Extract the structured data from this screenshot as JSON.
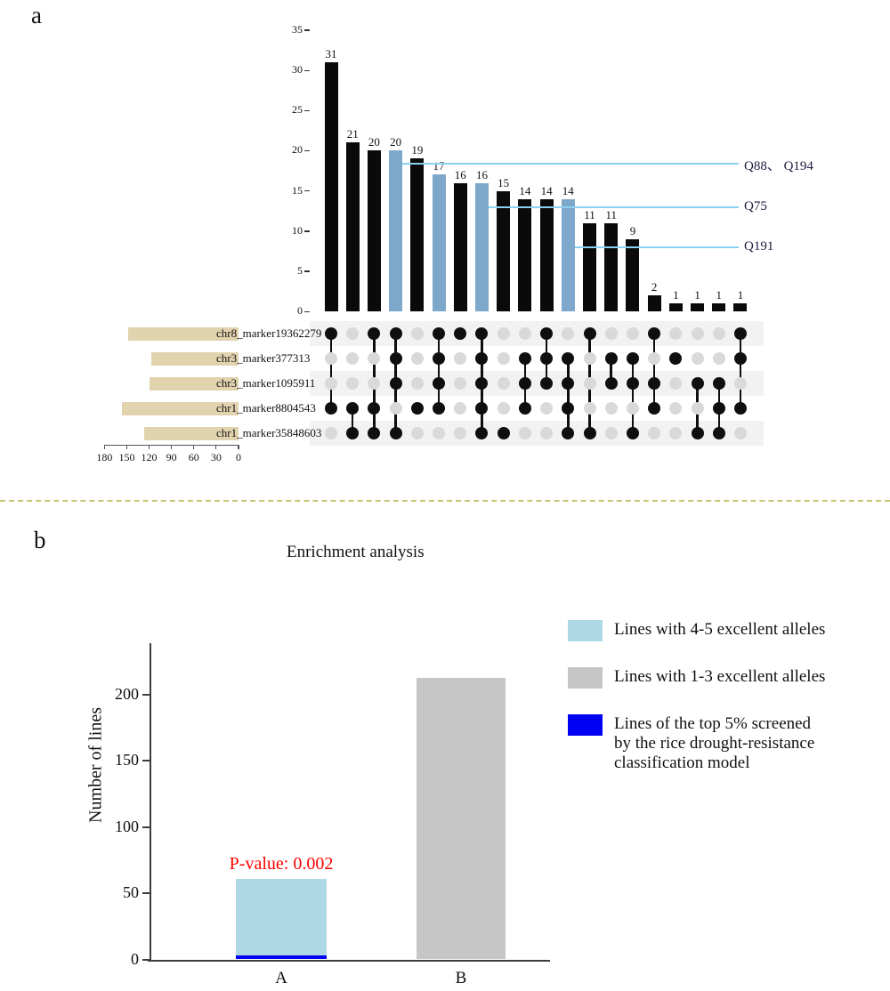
{
  "chart_data": [
    {
      "type": "upset",
      "panel": "a",
      "intersection_axis": {
        "ticks": [
          0,
          5,
          10,
          15,
          20,
          25,
          30,
          35
        ],
        "ylim": [
          0,
          35
        ]
      },
      "set_size_axis": {
        "ticks": [
          180,
          150,
          120,
          90,
          60,
          30,
          0
        ],
        "xlim": [
          0,
          180
        ]
      },
      "sets": [
        {
          "name": "chr8_marker19362279",
          "size": 148
        },
        {
          "name": "chr3_marker377313",
          "size": 117
        },
        {
          "name": "chr3_marker1095911",
          "size": 120
        },
        {
          "name": "chr1_marker8804543",
          "size": 156
        },
        {
          "name": "chr1_marker35848603",
          "size": 127
        }
      ],
      "intersections": [
        {
          "size": 31,
          "members": [
            1,
            4
          ],
          "highlight": false
        },
        {
          "size": 21,
          "members": [
            4,
            5
          ],
          "highlight": false
        },
        {
          "size": 20,
          "members": [
            1,
            4,
            5
          ],
          "highlight": false
        },
        {
          "size": 20,
          "members": [
            1,
            2,
            3,
            5
          ],
          "highlight": true
        },
        {
          "size": 19,
          "members": [
            4
          ],
          "highlight": false
        },
        {
          "size": 17,
          "members": [
            1,
            2,
            3,
            4
          ],
          "highlight": true
        },
        {
          "size": 16,
          "members": [
            1
          ],
          "highlight": false
        },
        {
          "size": 16,
          "members": [
            1,
            2,
            3,
            4,
            5
          ],
          "highlight": true
        },
        {
          "size": 15,
          "members": [
            5
          ],
          "highlight": false
        },
        {
          "size": 14,
          "members": [
            2,
            3,
            4
          ],
          "highlight": false
        },
        {
          "size": 14,
          "members": [
            1,
            2,
            3
          ],
          "highlight": false
        },
        {
          "size": 14,
          "members": [
            2,
            3,
            4,
            5
          ],
          "highlight": true
        },
        {
          "size": 11,
          "members": [
            1,
            5
          ],
          "highlight": false
        },
        {
          "size": 11,
          "members": [
            2,
            3
          ],
          "highlight": false
        },
        {
          "size": 9,
          "members": [
            2,
            3,
            5
          ],
          "highlight": false
        },
        {
          "size": 2,
          "members": [
            1,
            3,
            4
          ],
          "highlight": false
        },
        {
          "size": 1,
          "members": [
            2
          ],
          "highlight": false
        },
        {
          "size": 1,
          "members": [
            3,
            5
          ],
          "highlight": false
        },
        {
          "size": 1,
          "members": [
            3,
            4,
            5
          ],
          "highlight": false
        },
        {
          "size": 1,
          "members": [
            1,
            2,
            4
          ],
          "highlight": false
        }
      ],
      "annotations": [
        {
          "label": "Q88、 Q194",
          "value": 18.4,
          "from_bar": 4
        },
        {
          "label": "Q75",
          "value": 13,
          "from_bar": 8
        },
        {
          "label": "Q191",
          "value": 8,
          "from_bar": 12
        }
      ],
      "colors": {
        "bar": "#0a0a0a",
        "highlight_bar": "#7ea8cb",
        "set_bar": "#e2d3af",
        "dot_active": "#0f0f0f",
        "dot_inactive": "#d9d9d9",
        "stripe": "#f2f2f2",
        "annotation_line": "#8cd1f1"
      }
    },
    {
      "type": "bar",
      "panel": "b",
      "title": "Enrichment analysis",
      "ylabel": "Number of lines",
      "pvalue_label": "P-value: 0.002",
      "pvalue_color": "#fb0300",
      "y_ticks": [
        0,
        50,
        100,
        150,
        200
      ],
      "ylim": [
        0,
        240
      ],
      "categories": [
        "A",
        "B"
      ],
      "bars": [
        {
          "category": "A",
          "total": 61,
          "segments": [
            {
              "label": "Lines of the top 5% screened by the rice drought-resistance classification model",
              "value": 3,
              "color": "#0000f5"
            },
            {
              "label": "Lines with 4-5 excellent alleles",
              "value": 58,
              "color": "#add8e6"
            }
          ]
        },
        {
          "category": "B",
          "total": 213,
          "segments": [
            {
              "label": "Lines with 1-3 excellent alleles",
              "value": 213,
              "color": "#c6c6c6"
            }
          ]
        }
      ],
      "legend": [
        {
          "color": "#add8e6",
          "lines": [
            "Lines with 4-5 excellent alleles"
          ]
        },
        {
          "color": "#c6c6c6",
          "lines": [
            "Lines with 1-3 excellent alleles"
          ]
        },
        {
          "color": "#0000f5",
          "lines": [
            "Lines of the top 5% screened",
            "by the rice drought-resistance",
            "classification model"
          ]
        }
      ]
    }
  ]
}
